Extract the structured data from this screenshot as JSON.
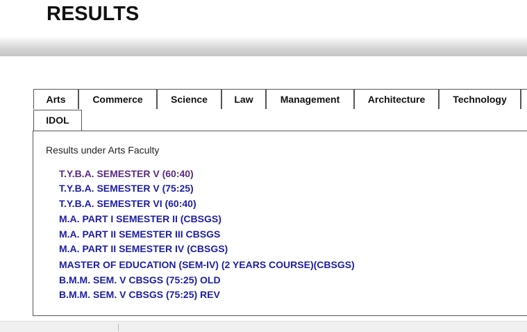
{
  "header": {
    "title": "RESULTS"
  },
  "tabs": [
    "Arts",
    "Commerce",
    "Science",
    "Law",
    "Management",
    "Architecture",
    "Technology",
    "IDOL"
  ],
  "panel": {
    "heading": "Results under Arts Faculty",
    "links": [
      "T.Y.B.A. SEMESTER V (60:40)",
      "T.Y.B.A. SEMESTER V (75:25)",
      "T.Y.B.A. SEMESTER VI (60:40)",
      "M.A. PART I SEMESTER II (CBSGS)",
      "M.A. PART II SEMESTER III CBSGS",
      "M.A. PART II SEMESTER IV (CBSGS)",
      "MASTER OF EDUCATION (SEM-IV) (2 YEARS COURSE)(CBSGS)",
      "B.M.M. SEM. V CBSGS (75:25) OLD",
      "B.M.M. SEM. V CBSGS (75:25) REV"
    ]
  }
}
